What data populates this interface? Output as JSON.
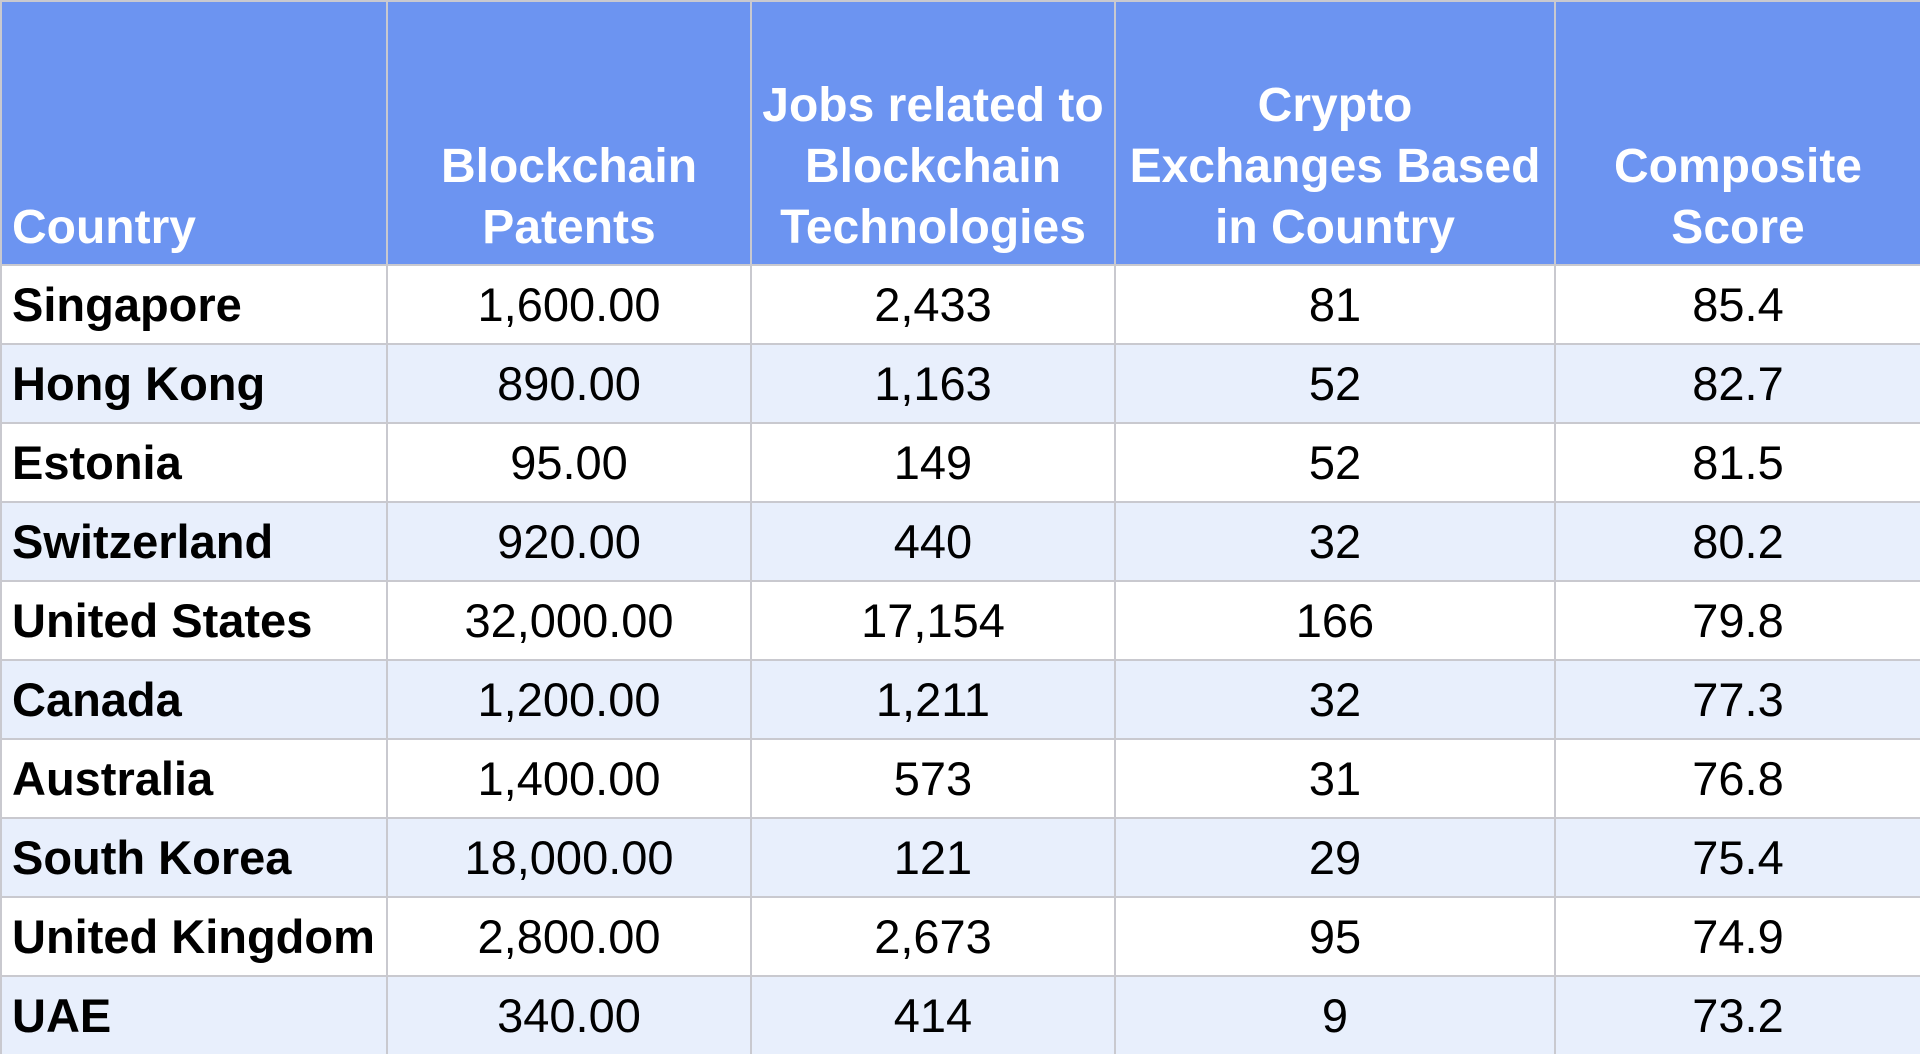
{
  "table": {
    "headers": [
      "Country",
      "Blockchain Patents",
      "Jobs related to Blockchain Technologies",
      "Crypto Exchanges Based in Country",
      "Composite Score"
    ],
    "rows": [
      [
        "Singapore",
        "1,600.00",
        "2,433",
        "81",
        "85.4"
      ],
      [
        "Hong Kong",
        "890.00",
        "1,163",
        "52",
        "82.7"
      ],
      [
        "Estonia",
        "95.00",
        "149",
        "52",
        "81.5"
      ],
      [
        "Switzerland",
        "920.00",
        "440",
        "32",
        "80.2"
      ],
      [
        "United States",
        "32,000.00",
        "17,154",
        "166",
        "79.8"
      ],
      [
        "Canada",
        "1,200.00",
        "1,211",
        "32",
        "77.3"
      ],
      [
        "Australia",
        "1,400.00",
        "573",
        "31",
        "76.8"
      ],
      [
        "South Korea",
        "18,000.00",
        "121",
        "29",
        "75.4"
      ],
      [
        "United Kingdom",
        "2,800.00",
        "2,673",
        "95",
        "74.9"
      ],
      [
        "UAE",
        "340.00",
        "414",
        "9",
        "73.2"
      ]
    ]
  }
}
